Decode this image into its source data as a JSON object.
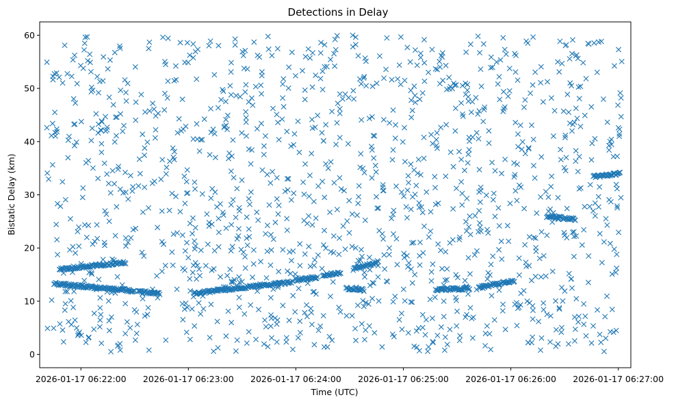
{
  "chart_data": {
    "type": "scatter",
    "title": "Detections in Delay",
    "xlabel": "Time (UTC)",
    "ylabel": "Bistatic Delay (km)",
    "marker": "x",
    "color": "#1f77b4",
    "grid": false,
    "legend": "none",
    "xlim": [
      "2026-01-17 06:21:37",
      "2026-01-17 06:27:07"
    ],
    "ylim": [
      -2.5,
      62.5
    ],
    "xticks": [
      "2026-01-17 06:22:00",
      "2026-01-17 06:23:00",
      "2026-01-17 06:24:00",
      "2026-01-17 06:25:00",
      "2026-01-17 06:26:00",
      "2026-01-17 06:27:00"
    ],
    "yticks": [
      "0",
      "10",
      "20",
      "30",
      "40",
      "50",
      "60"
    ],
    "x_start": "2026-01-17 06:21:41",
    "x_end": "2026-01-17 06:27:02",
    "approx_total_points": 2000,
    "tracks": [
      {
        "start": "2026-01-17 06:21:48",
        "end": "2026-01-17 06:22:05",
        "delay_start": 16.0,
        "delay_end": 16.6
      },
      {
        "start": "2026-01-17 06:22:05",
        "end": "2026-01-17 06:22:25",
        "delay_start": 16.6,
        "delay_end": 17.3
      },
      {
        "start": "2026-01-17 06:21:45",
        "end": "2026-01-17 06:22:30",
        "delay_start": 13.3,
        "delay_end": 11.9
      },
      {
        "start": "2026-01-17 06:22:32",
        "end": "2026-01-17 06:22:44",
        "delay_start": 11.8,
        "delay_end": 11.5
      },
      {
        "start": "2026-01-17 06:23:03",
        "end": "2026-01-17 06:23:58",
        "delay_start": 11.5,
        "delay_end": 13.6
      },
      {
        "start": "2026-01-17 06:24:00",
        "end": "2026-01-17 06:24:12",
        "delay_start": 14.0,
        "delay_end": 14.5
      },
      {
        "start": "2026-01-17 06:24:15",
        "end": "2026-01-17 06:24:25",
        "delay_start": 14.8,
        "delay_end": 15.4
      },
      {
        "start": "2026-01-17 06:24:28",
        "end": "2026-01-17 06:24:38",
        "delay_start": 12.4,
        "delay_end": 12.1
      },
      {
        "start": "2026-01-17 06:24:32",
        "end": "2026-01-17 06:24:46",
        "delay_start": 16.0,
        "delay_end": 17.4
      },
      {
        "start": "2026-01-17 06:25:18",
        "end": "2026-01-17 06:25:37",
        "delay_start": 12.2,
        "delay_end": 12.4
      },
      {
        "start": "2026-01-17 06:25:42",
        "end": "2026-01-17 06:26:02",
        "delay_start": 12.6,
        "delay_end": 13.8
      },
      {
        "start": "2026-01-17 06:26:20",
        "end": "2026-01-17 06:26:36",
        "delay_start": 26.0,
        "delay_end": 25.4
      },
      {
        "start": "2026-01-17 06:26:46",
        "end": "2026-01-17 06:27:01",
        "delay_start": 33.4,
        "delay_end": 34.0
      }
    ]
  }
}
